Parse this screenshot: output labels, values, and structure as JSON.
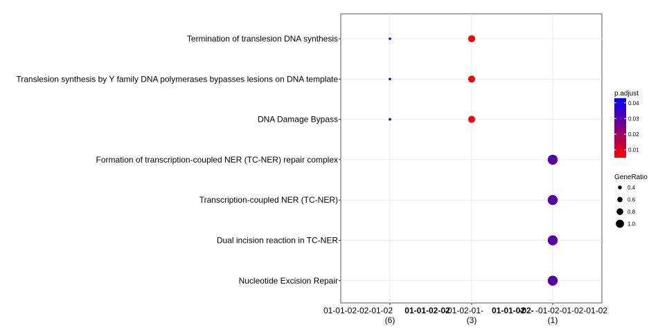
{
  "chart_data": {
    "type": "scatter",
    "title": "",
    "xlabel": "",
    "ylabel": "",
    "x_tick_labels": [
      "01-01-02-02-01-02",
      "01-01-02-02",
      "-01-02-01-",
      "01-01-02",
      "-02-",
      "-01-02-01-02-01-02"
    ],
    "cluster_labels": [
      "(6)",
      "(3)",
      "(1)"
    ],
    "categories": [
      "Termination of translesion DNA synthesis",
      "Translesion synthesis by Y family DNA polymerases bypasses lesions on DNA template",
      "DNA Damage Bypass",
      "Formation of transcription-coupled NER (TC-NER) repair complex",
      "Transcription-coupled NER (TC-NER)",
      "Dual incision reaction in TC-NER",
      "Nucleotide Excision Repair"
    ],
    "points": [
      {
        "cluster": "(6)",
        "term": "Termination of translesion DNA synthesis",
        "gene_ratio": 0.17,
        "p_adjust": 0.042
      },
      {
        "cluster": "(6)",
        "term": "Translesion synthesis by Y family DNA polymerases bypasses lesions on DNA template",
        "gene_ratio": 0.17,
        "p_adjust": 0.042
      },
      {
        "cluster": "(6)",
        "term": "DNA Damage Bypass",
        "gene_ratio": 0.17,
        "p_adjust": 0.042
      },
      {
        "cluster": "(3)",
        "term": "Termination of translesion DNA synthesis",
        "gene_ratio": 0.67,
        "p_adjust": 0.006
      },
      {
        "cluster": "(3)",
        "term": "Translesion synthesis by Y family DNA polymerases bypasses lesions on DNA template",
        "gene_ratio": 0.67,
        "p_adjust": 0.006
      },
      {
        "cluster": "(3)",
        "term": "DNA Damage Bypass",
        "gene_ratio": 0.67,
        "p_adjust": 0.006
      },
      {
        "cluster": "(1)",
        "term": "Formation of transcription-coupled NER (TC-NER) repair complex",
        "gene_ratio": 1.0,
        "p_adjust": 0.03
      },
      {
        "cluster": "(1)",
        "term": "Transcription-coupled NER (TC-NER)",
        "gene_ratio": 1.0,
        "p_adjust": 0.03
      },
      {
        "cluster": "(1)",
        "term": "Dual incision reaction in TC-NER",
        "gene_ratio": 1.0,
        "p_adjust": 0.03
      },
      {
        "cluster": "(1)",
        "term": "Nucleotide Excision Repair",
        "gene_ratio": 1.0,
        "p_adjust": 0.03
      }
    ],
    "color_legend": {
      "title": "p.adjust",
      "ticks": [
        0.04,
        0.03,
        0.02,
        0.01
      ],
      "range": [
        0.005,
        0.043
      ],
      "low_color": "#ff0000",
      "high_color": "#0000ff"
    },
    "size_legend": {
      "title": "GeneRatio",
      "values": [
        0.4,
        0.6,
        0.8,
        1.0
      ]
    },
    "grid": true,
    "legend_position": "right"
  }
}
